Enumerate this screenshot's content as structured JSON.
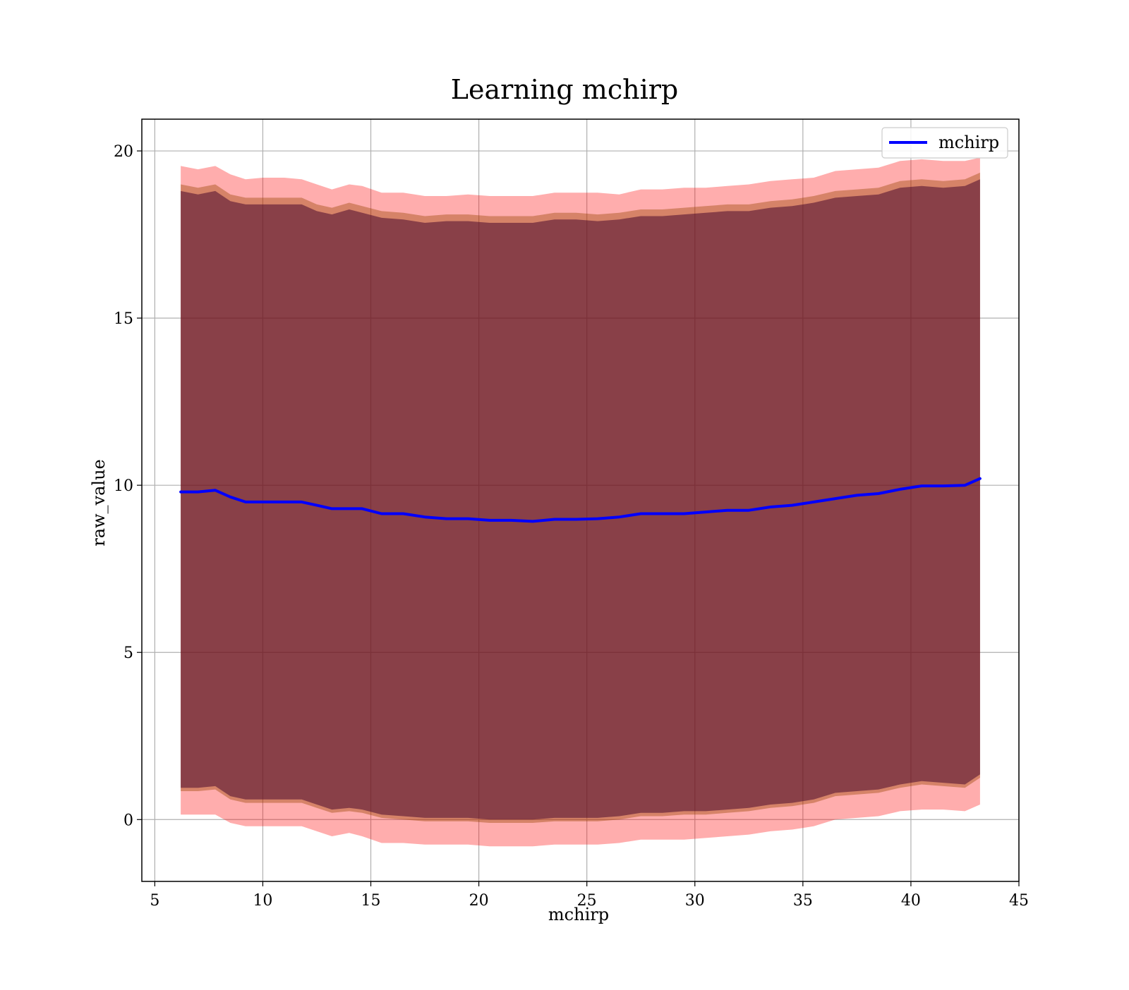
{
  "chart_data": {
    "type": "area",
    "title": "Learning mchirp",
    "xlabel": "mchirp",
    "ylabel": "raw_value",
    "xlim": [
      4.4,
      45
    ],
    "ylim": [
      -1.85,
      20.95
    ],
    "xticks": [
      5,
      10,
      15,
      20,
      25,
      30,
      35,
      40,
      45
    ],
    "yticks": [
      0,
      5,
      10,
      15,
      20
    ],
    "grid": true,
    "legend_position": "top-right",
    "x": [
      6.2,
      7,
      7.8,
      8.5,
      9.2,
      10,
      11,
      11.8,
      12.5,
      13.2,
      14,
      14.6,
      15.5,
      16.5,
      17.5,
      18.5,
      19.5,
      20.5,
      21.5,
      22.5,
      23.5,
      24.5,
      25.5,
      26.5,
      27.5,
      28.5,
      29.5,
      30.5,
      31.5,
      32.5,
      33.5,
      34.5,
      35.5,
      36.5,
      37.5,
      38.5,
      39.5,
      40.5,
      41.5,
      42.5,
      43.2
    ],
    "series": [
      {
        "name": "mchirp",
        "color": "#0000ff",
        "values": [
          9.8,
          9.8,
          9.85,
          9.65,
          9.5,
          9.5,
          9.5,
          9.5,
          9.4,
          9.3,
          9.3,
          9.3,
          9.15,
          9.15,
          9.05,
          9.0,
          9.0,
          8.95,
          8.95,
          8.92,
          8.98,
          8.98,
          9.0,
          9.05,
          9.15,
          9.15,
          9.15,
          9.2,
          9.25,
          9.25,
          9.35,
          9.4,
          9.5,
          9.6,
          9.7,
          9.75,
          9.88,
          9.98,
          9.98,
          10.0,
          10.2
        ]
      }
    ],
    "bands": [
      {
        "color": "#ff0000",
        "opacity": 0.32,
        "upper": [
          19.55,
          19.45,
          19.55,
          19.3,
          19.15,
          19.2,
          19.2,
          19.15,
          19.0,
          18.85,
          19.0,
          18.95,
          18.75,
          18.75,
          18.65,
          18.65,
          18.7,
          18.65,
          18.65,
          18.65,
          18.75,
          18.75,
          18.75,
          18.7,
          18.85,
          18.85,
          18.9,
          18.9,
          18.95,
          19.0,
          19.1,
          19.15,
          19.2,
          19.4,
          19.45,
          19.5,
          19.7,
          19.75,
          19.7,
          19.7,
          19.8
        ],
        "lower": [
          0.15,
          0.15,
          0.15,
          -0.1,
          -0.2,
          -0.2,
          -0.2,
          -0.2,
          -0.35,
          -0.5,
          -0.4,
          -0.5,
          -0.7,
          -0.7,
          -0.75,
          -0.75,
          -0.75,
          -0.8,
          -0.8,
          -0.8,
          -0.75,
          -0.75,
          -0.75,
          -0.7,
          -0.6,
          -0.6,
          -0.6,
          -0.55,
          -0.5,
          -0.45,
          -0.35,
          -0.3,
          -0.2,
          0.0,
          0.05,
          0.1,
          0.25,
          0.3,
          0.3,
          0.25,
          0.45
        ]
      },
      {
        "color": "#994400",
        "opacity": 0.4,
        "upper": [
          19.0,
          18.9,
          19.0,
          18.7,
          18.6,
          18.6,
          18.6,
          18.6,
          18.4,
          18.3,
          18.45,
          18.35,
          18.2,
          18.15,
          18.05,
          18.1,
          18.1,
          18.05,
          18.05,
          18.05,
          18.15,
          18.15,
          18.1,
          18.15,
          18.25,
          18.25,
          18.3,
          18.35,
          18.4,
          18.4,
          18.5,
          18.55,
          18.65,
          18.8,
          18.85,
          18.9,
          19.1,
          19.15,
          19.1,
          19.15,
          19.35
        ],
        "lower": [
          0.85,
          0.85,
          0.9,
          0.6,
          0.5,
          0.5,
          0.5,
          0.5,
          0.35,
          0.2,
          0.25,
          0.2,
          0.05,
          0.0,
          -0.05,
          -0.05,
          -0.05,
          -0.1,
          -0.1,
          -0.1,
          -0.05,
          -0.05,
          -0.05,
          0.0,
          0.1,
          0.1,
          0.15,
          0.15,
          0.2,
          0.25,
          0.35,
          0.4,
          0.5,
          0.7,
          0.75,
          0.8,
          0.95,
          1.05,
          1.0,
          0.95,
          1.25
        ]
      },
      {
        "color": "#4a0a2e",
        "opacity": 0.55,
        "upper": [
          18.8,
          18.7,
          18.8,
          18.5,
          18.4,
          18.4,
          18.4,
          18.4,
          18.2,
          18.1,
          18.25,
          18.15,
          18.0,
          17.95,
          17.85,
          17.9,
          17.9,
          17.85,
          17.85,
          17.85,
          17.95,
          17.95,
          17.9,
          17.95,
          18.05,
          18.05,
          18.1,
          18.15,
          18.2,
          18.2,
          18.3,
          18.35,
          18.45,
          18.6,
          18.65,
          18.7,
          18.9,
          18.95,
          18.9,
          18.95,
          19.15
        ],
        "lower": [
          0.95,
          0.95,
          1.0,
          0.7,
          0.6,
          0.6,
          0.6,
          0.6,
          0.45,
          0.3,
          0.35,
          0.3,
          0.15,
          0.1,
          0.05,
          0.05,
          0.05,
          0.0,
          0.0,
          0.0,
          0.05,
          0.05,
          0.05,
          0.1,
          0.2,
          0.2,
          0.25,
          0.25,
          0.3,
          0.35,
          0.45,
          0.5,
          0.6,
          0.8,
          0.85,
          0.9,
          1.05,
          1.15,
          1.1,
          1.05,
          1.35
        ]
      }
    ]
  }
}
